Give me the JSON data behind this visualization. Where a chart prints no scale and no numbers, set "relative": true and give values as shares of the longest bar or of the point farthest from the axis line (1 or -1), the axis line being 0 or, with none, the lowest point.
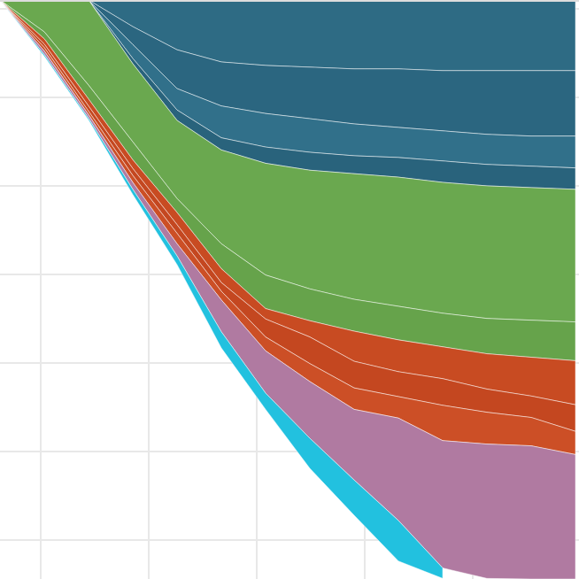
{
  "chart_data": {
    "type": "area",
    "stacked": true,
    "relative": true,
    "grid": true,
    "categories": [
      null,
      null,
      null,
      null,
      null,
      null,
      null,
      null,
      null,
      null,
      null,
      null,
      null,
      null
    ],
    "series": [
      {
        "color": "#2e6b84",
        "values": [
          0,
          0,
          0,
          -0.046,
          -0.086,
          -0.107,
          -0.113,
          -0.116,
          -0.119,
          -0.119,
          -0.122,
          -0.122,
          -0.122,
          -0.122
        ]
      },
      {
        "color": "#2b6680",
        "values": [
          0,
          0,
          0,
          -0.031,
          -0.067,
          -0.076,
          -0.083,
          -0.089,
          -0.095,
          -0.101,
          -0.104,
          -0.11,
          -0.113,
          -0.113
        ]
      },
      {
        "color": "#31708a",
        "values": [
          0,
          0,
          0,
          -0.024,
          -0.037,
          -0.055,
          -0.058,
          -0.058,
          -0.055,
          -0.052,
          -0.052,
          -0.052,
          -0.052,
          -0.055
        ]
      },
      {
        "color": "#29637c",
        "values": [
          0,
          0,
          0,
          -0.009,
          -0.018,
          -0.021,
          -0.028,
          -0.031,
          -0.031,
          -0.034,
          -0.037,
          -0.037,
          -0.037,
          -0.037
        ]
      },
      {
        "color": "#6aa84f",
        "values": [
          0,
          -0.055,
          -0.147,
          -0.135,
          -0.135,
          -0.162,
          -0.193,
          -0.205,
          -0.217,
          -0.223,
          -0.226,
          -0.229,
          -0.229,
          -0.229
        ]
      },
      {
        "color": "#66a34b",
        "values": [
          0,
          -0.012,
          -0.024,
          -0.031,
          -0.024,
          -0.043,
          -0.058,
          -0.055,
          -0.055,
          -0.058,
          -0.058,
          -0.061,
          -0.064,
          -0.067
        ]
      },
      {
        "color": "#c84b22",
        "values": [
          0,
          -0.009,
          -0.012,
          -0.015,
          -0.021,
          -0.024,
          -0.018,
          -0.028,
          -0.052,
          -0.055,
          -0.055,
          -0.061,
          -0.067,
          -0.076
        ]
      },
      {
        "color": "#c44720",
        "values": [
          0,
          -0.006,
          -0.009,
          -0.012,
          -0.015,
          -0.015,
          -0.031,
          -0.046,
          -0.046,
          -0.043,
          -0.046,
          -0.04,
          -0.037,
          -0.046
        ]
      },
      {
        "color": "#cc4f26",
        "values": [
          0,
          -0.006,
          -0.006,
          -0.012,
          -0.018,
          -0.015,
          -0.024,
          -0.031,
          -0.037,
          -0.037,
          -0.061,
          -0.055,
          -0.049,
          -0.04
        ]
      },
      {
        "color": "#b07aa1",
        "values": [
          0,
          -0.006,
          -0.006,
          -0.012,
          -0.021,
          -0.055,
          -0.073,
          -0.098,
          -0.122,
          -0.177,
          -0.22,
          -0.232,
          -0.23,
          -0.215
        ]
      },
      {
        "color": "#22c1df",
        "values": [
          0,
          -0.003,
          -0.003,
          -0.009,
          -0.015,
          -0.028,
          -0.028,
          -0.052,
          -0.061,
          -0.07,
          -0.018,
          null,
          null,
          null
        ]
      }
    ]
  }
}
